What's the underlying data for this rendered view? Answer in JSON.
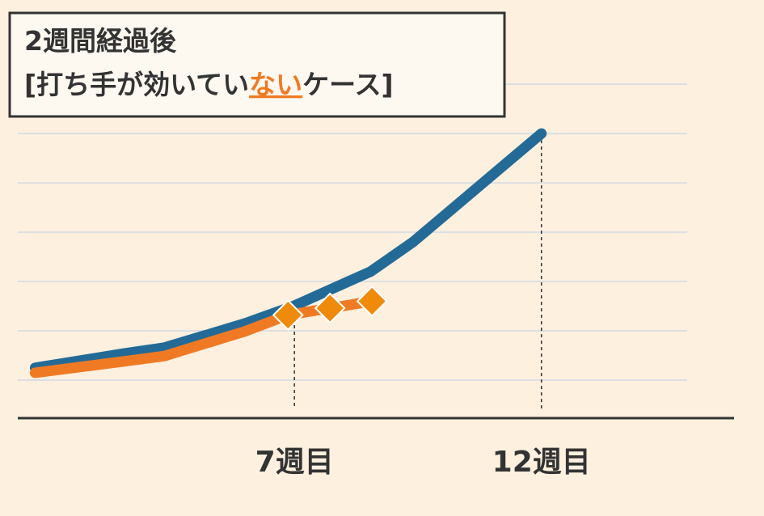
{
  "chart_data": {
    "type": "line",
    "title_line1": "2週間経過後",
    "title_line2": [
      "[打ち手が効いてい",
      "ない",
      "ケース]"
    ],
    "title_highlight_color": "#f07a24",
    "xlim": [
      1.4,
      15.9
    ],
    "xticks": [
      {
        "value": 7,
        "label": "7週目"
      },
      {
        "value": 12,
        "label": "12週目"
      }
    ],
    "ylim": [
      -0.77,
      6.1
    ],
    "yticks": [
      0,
      1,
      2,
      3,
      4,
      5,
      6
    ],
    "grid": true,
    "series": [
      {
        "color": "#236b96",
        "x": [
          1.75,
          3.55,
          4.37,
          6.0,
          7.0,
          8.54,
          9.4,
          12.0
        ],
        "values": [
          0.25,
          0.54,
          0.66,
          1.15,
          1.51,
          2.2,
          2.8,
          5.0
        ]
      },
      {
        "color": "#f07a24",
        "marker_color": "#ef8a0a",
        "x": [
          1.75,
          3.55,
          4.37,
          6.0,
          6.87,
          7.72,
          8.57
        ],
        "values": [
          0.15,
          0.38,
          0.49,
          0.99,
          1.32,
          1.46,
          1.6
        ],
        "markers": [
          false,
          false,
          false,
          false,
          true,
          true,
          true
        ]
      }
    ]
  }
}
